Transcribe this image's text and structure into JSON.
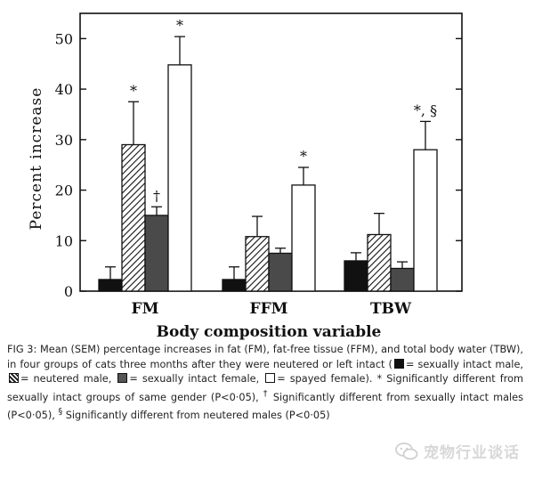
{
  "chart_data": {
    "type": "bar",
    "ylabel": "Percent increase",
    "xlabel": "Body composition variable",
    "ylim": [
      0,
      55
    ],
    "yticks": [
      0,
      10,
      20,
      30,
      40,
      50
    ],
    "categories": [
      "FM",
      "FFM",
      "TBW"
    ],
    "series": [
      {
        "fill": "black",
        "values": [
          2.3,
          2.3,
          6.0
        ],
        "errors": [
          2.5,
          2.5,
          1.6
        ],
        "markers": [
          "",
          "",
          ""
        ]
      },
      {
        "fill": "hatch",
        "values": [
          29.0,
          10.8,
          11.2
        ],
        "errors": [
          8.5,
          4.0,
          4.2
        ],
        "markers": [
          "*",
          "",
          ""
        ]
      },
      {
        "fill": "dark",
        "values": [
          15.0,
          7.5,
          4.5
        ],
        "errors": [
          1.7,
          1.0,
          1.3
        ],
        "markers": [
          "†",
          "",
          ""
        ]
      },
      {
        "fill": "white",
        "values": [
          44.8,
          21.0,
          28.0
        ],
        "errors": [
          5.6,
          3.5,
          5.6
        ],
        "markers": [
          "*",
          "*",
          "*, §"
        ]
      }
    ],
    "colors": {
      "black": "#111111",
      "dark": "#4a4a4a",
      "white": "#ffffff",
      "axis": "#111111"
    }
  },
  "caption": {
    "p1": "FIG 3: Mean (SEM) percentage increases in fat (FM), fat-free tissue (FFM), and total body water (TBW), in four groups of cats three months after they were neutered or left intact (",
    "k1": "= sexually intact male,",
    "k2": "= neutered male,",
    "k3": "= sexually intact female,",
    "k4": "= spayed female).",
    "p2": "* Significantly different from sexually intact groups of same gender (P<0·05),",
    "dagger": "†",
    "p3": "Significantly different from sexually intact males (P<0·05),",
    "section": "§",
    "p4": "Significantly different from neutered males (P<0·05)"
  },
  "watermark": {
    "text": "宠物行业谈话",
    "icon": "wechat-icon"
  }
}
